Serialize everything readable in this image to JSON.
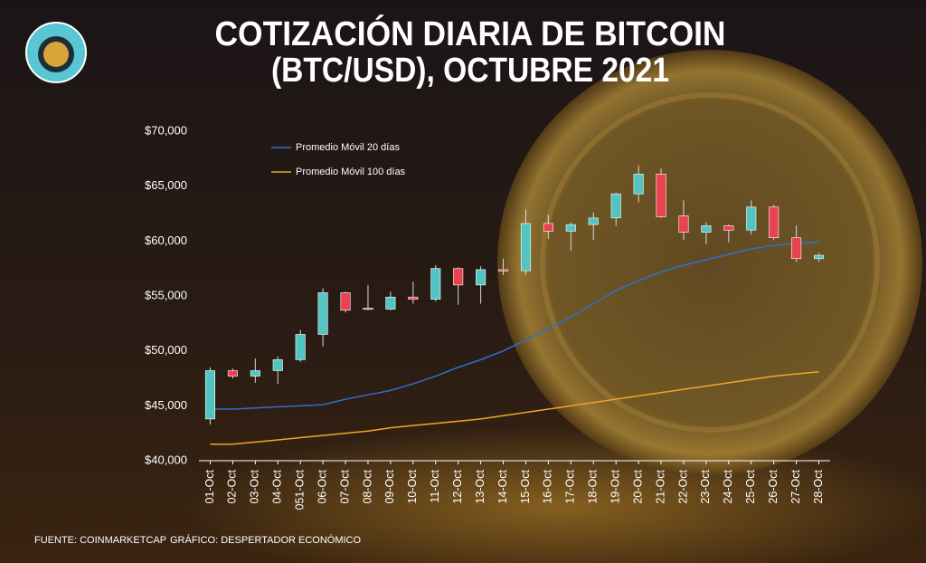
{
  "chart_data": {
    "type": "candlestick",
    "title": [
      "COTIZACIÓN DIARIA DE BITCOIN",
      "(BTC/USD), OCTUBRE 2021"
    ],
    "categories": [
      "01-Oct",
      "02-Oct",
      "03-Oct",
      "04-Oct",
      "051-Oct",
      "06-Oct",
      "07-Oct",
      "08-Oct",
      "09-Oct",
      "10-Oct",
      "11-Oct",
      "12-Oct",
      "13-Oct",
      "14-Oct",
      "15-Oct",
      "16-Oct",
      "17-Oct",
      "18-Oct",
      "19-Oct",
      "20-Oct",
      "21-Oct",
      "22-Oct",
      "23-Oct",
      "24-Oct",
      "25-Oct",
      "26-Oct",
      "27-Oct",
      "28-Oct"
    ],
    "candles": {
      "up_color": "#52c4c2",
      "down_color": "#e8434f",
      "open": [
        43800,
        48200,
        47700,
        48200,
        49200,
        51500,
        55300,
        53900,
        53800,
        54900,
        54700,
        57500,
        56000,
        57400,
        57300,
        61600,
        60900,
        61500,
        62100,
        64300,
        66100,
        62300,
        60800,
        61400,
        61000,
        63100,
        60300,
        58400
      ],
      "high": [
        48500,
        48400,
        49300,
        49500,
        51900,
        55700,
        55400,
        56000,
        55400,
        56300,
        57800,
        57600,
        57700,
        58400,
        62900,
        62400,
        61700,
        62600,
        64400,
        66900,
        66600,
        63700,
        61700,
        61500,
        63700,
        63300,
        61400,
        58900
      ],
      "low": [
        43300,
        47500,
        47100,
        47000,
        49000,
        50400,
        53500,
        53700,
        53700,
        54300,
        54500,
        54200,
        54300,
        56900,
        56900,
        60200,
        59100,
        60100,
        61400,
        63500,
        62100,
        60100,
        59700,
        59900,
        60600,
        60100,
        58100,
        58100
      ],
      "close": [
        48200,
        47700,
        48200,
        49200,
        51500,
        55300,
        53700,
        53800,
        54900,
        54700,
        57500,
        56000,
        57400,
        57300,
        61600,
        60900,
        61500,
        62100,
        64300,
        66100,
        62200,
        60800,
        61400,
        61000,
        63100,
        60300,
        58400,
        58700
      ]
    },
    "series": [
      {
        "name": "Promedio Móvil 20 días",
        "color": "#2f6fd0",
        "type": "line",
        "values": [
          44700,
          44700,
          44800,
          44900,
          45000,
          45100,
          45600,
          46000,
          46400,
          47000,
          47700,
          48500,
          49200,
          50000,
          51000,
          52000,
          53100,
          54300,
          55500,
          56400,
          57200,
          57800,
          58300,
          58800,
          59300,
          59600,
          59800,
          59900
        ]
      },
      {
        "name": "Promedio Móvil 100 días",
        "color": "#f0a52a",
        "type": "line",
        "values": [
          41500,
          41500,
          41700,
          41900,
          42100,
          42300,
          42500,
          42700,
          43000,
          43200,
          43400,
          43600,
          43800,
          44100,
          44400,
          44700,
          45000,
          45300,
          45600,
          45900,
          46200,
          46500,
          46800,
          47100,
          47400,
          47700,
          47900,
          48100
        ]
      }
    ],
    "ylim": [
      40000,
      70000
    ],
    "yticks": [
      {
        "value": 40000,
        "label": "$40,000"
      },
      {
        "value": 45000,
        "label": "$45,000"
      },
      {
        "value": 50000,
        "label": "$50,000"
      },
      {
        "value": 55000,
        "label": "$55,000"
      },
      {
        "value": 60000,
        "label": "$60,000"
      },
      {
        "value": 65000,
        "label": "$65,000"
      },
      {
        "value": 70000,
        "label": "$70,000"
      }
    ],
    "source": "FUENTE: COINMARKETCAP",
    "credit": "GRÁFICO: DESPERTADOR ECONÓMICO"
  }
}
